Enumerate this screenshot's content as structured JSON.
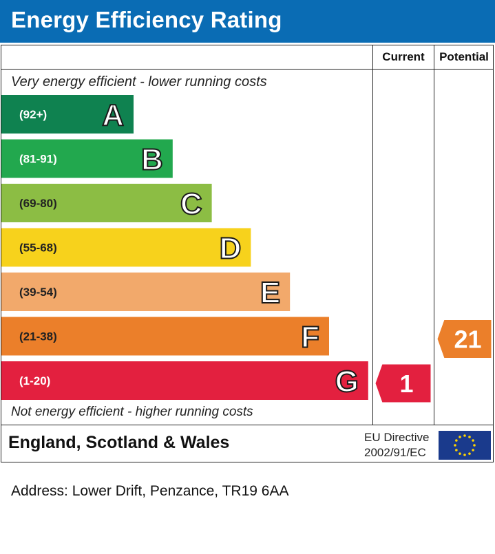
{
  "title": "Energy Efficiency Rating",
  "columns": {
    "current": "Current",
    "potential": "Potential"
  },
  "captions": {
    "top": "Very energy efficient - lower running costs",
    "bottom": "Not energy efficient - higher running costs"
  },
  "footer": {
    "region": "England, Scotland & Wales",
    "eu_line1": "EU Directive",
    "eu_line2": "2002/91/EC"
  },
  "address": "Address: Lower Drift, Penzance, TR19 6AA",
  "chart_data": {
    "type": "bar",
    "title": "Energy Efficiency Rating",
    "bands": [
      {
        "letter": "A",
        "range": "(92+)",
        "min": 92,
        "max": 100,
        "color": "#0f8250"
      },
      {
        "letter": "B",
        "range": "(81-91)",
        "min": 81,
        "max": 91,
        "color": "#22a84e"
      },
      {
        "letter": "C",
        "range": "(69-80)",
        "min": 69,
        "max": 80,
        "color": "#8cbd44"
      },
      {
        "letter": "D",
        "range": "(55-68)",
        "min": 55,
        "max": 68,
        "color": "#f7d21c"
      },
      {
        "letter": "E",
        "range": "(39-54)",
        "min": 39,
        "max": 54,
        "color": "#f2a96b"
      },
      {
        "letter": "F",
        "range": "(21-38)",
        "min": 21,
        "max": 38,
        "color": "#eb7f2a"
      },
      {
        "letter": "G",
        "range": "(1-20)",
        "min": 1,
        "max": 20,
        "color": "#e3203f"
      }
    ],
    "ratings": {
      "current": {
        "value": 1,
        "band": "G",
        "color": "#e3203f"
      },
      "potential": {
        "value": 21,
        "band": "F",
        "color": "#eb7f2a"
      }
    }
  }
}
